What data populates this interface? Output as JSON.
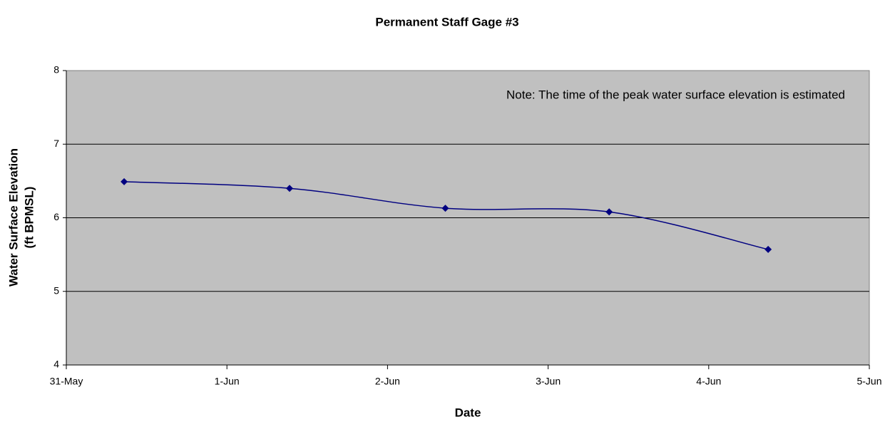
{
  "chart_data": {
    "type": "line",
    "title": "Permanent Staff Gage #3",
    "xlabel": "Date",
    "ylabel": [
      "Water Surface Elevation",
      "(ft BPMSL)"
    ],
    "annotation": "Note: The time of the peak water surface elevation is estimated",
    "x": [
      0.36,
      1.39,
      2.36,
      3.38,
      4.37
    ],
    "values": [
      6.49,
      6.4,
      6.13,
      6.08,
      5.57
    ],
    "color": "#000080",
    "smooth": true,
    "xlim": [
      0,
      5
    ],
    "xticks": [
      {
        "value": 0,
        "label": "31-May"
      },
      {
        "value": 1,
        "label": "1-Jun"
      },
      {
        "value": 2,
        "label": "2-Jun"
      },
      {
        "value": 3,
        "label": "3-Jun"
      },
      {
        "value": 4,
        "label": "4-Jun"
      },
      {
        "value": 5,
        "label": "5-Jun"
      }
    ],
    "ylim": [
      4,
      8
    ],
    "yticks": [
      4,
      5,
      6,
      7,
      8
    ],
    "grid": true,
    "plot_background": "#c0c0c0"
  }
}
